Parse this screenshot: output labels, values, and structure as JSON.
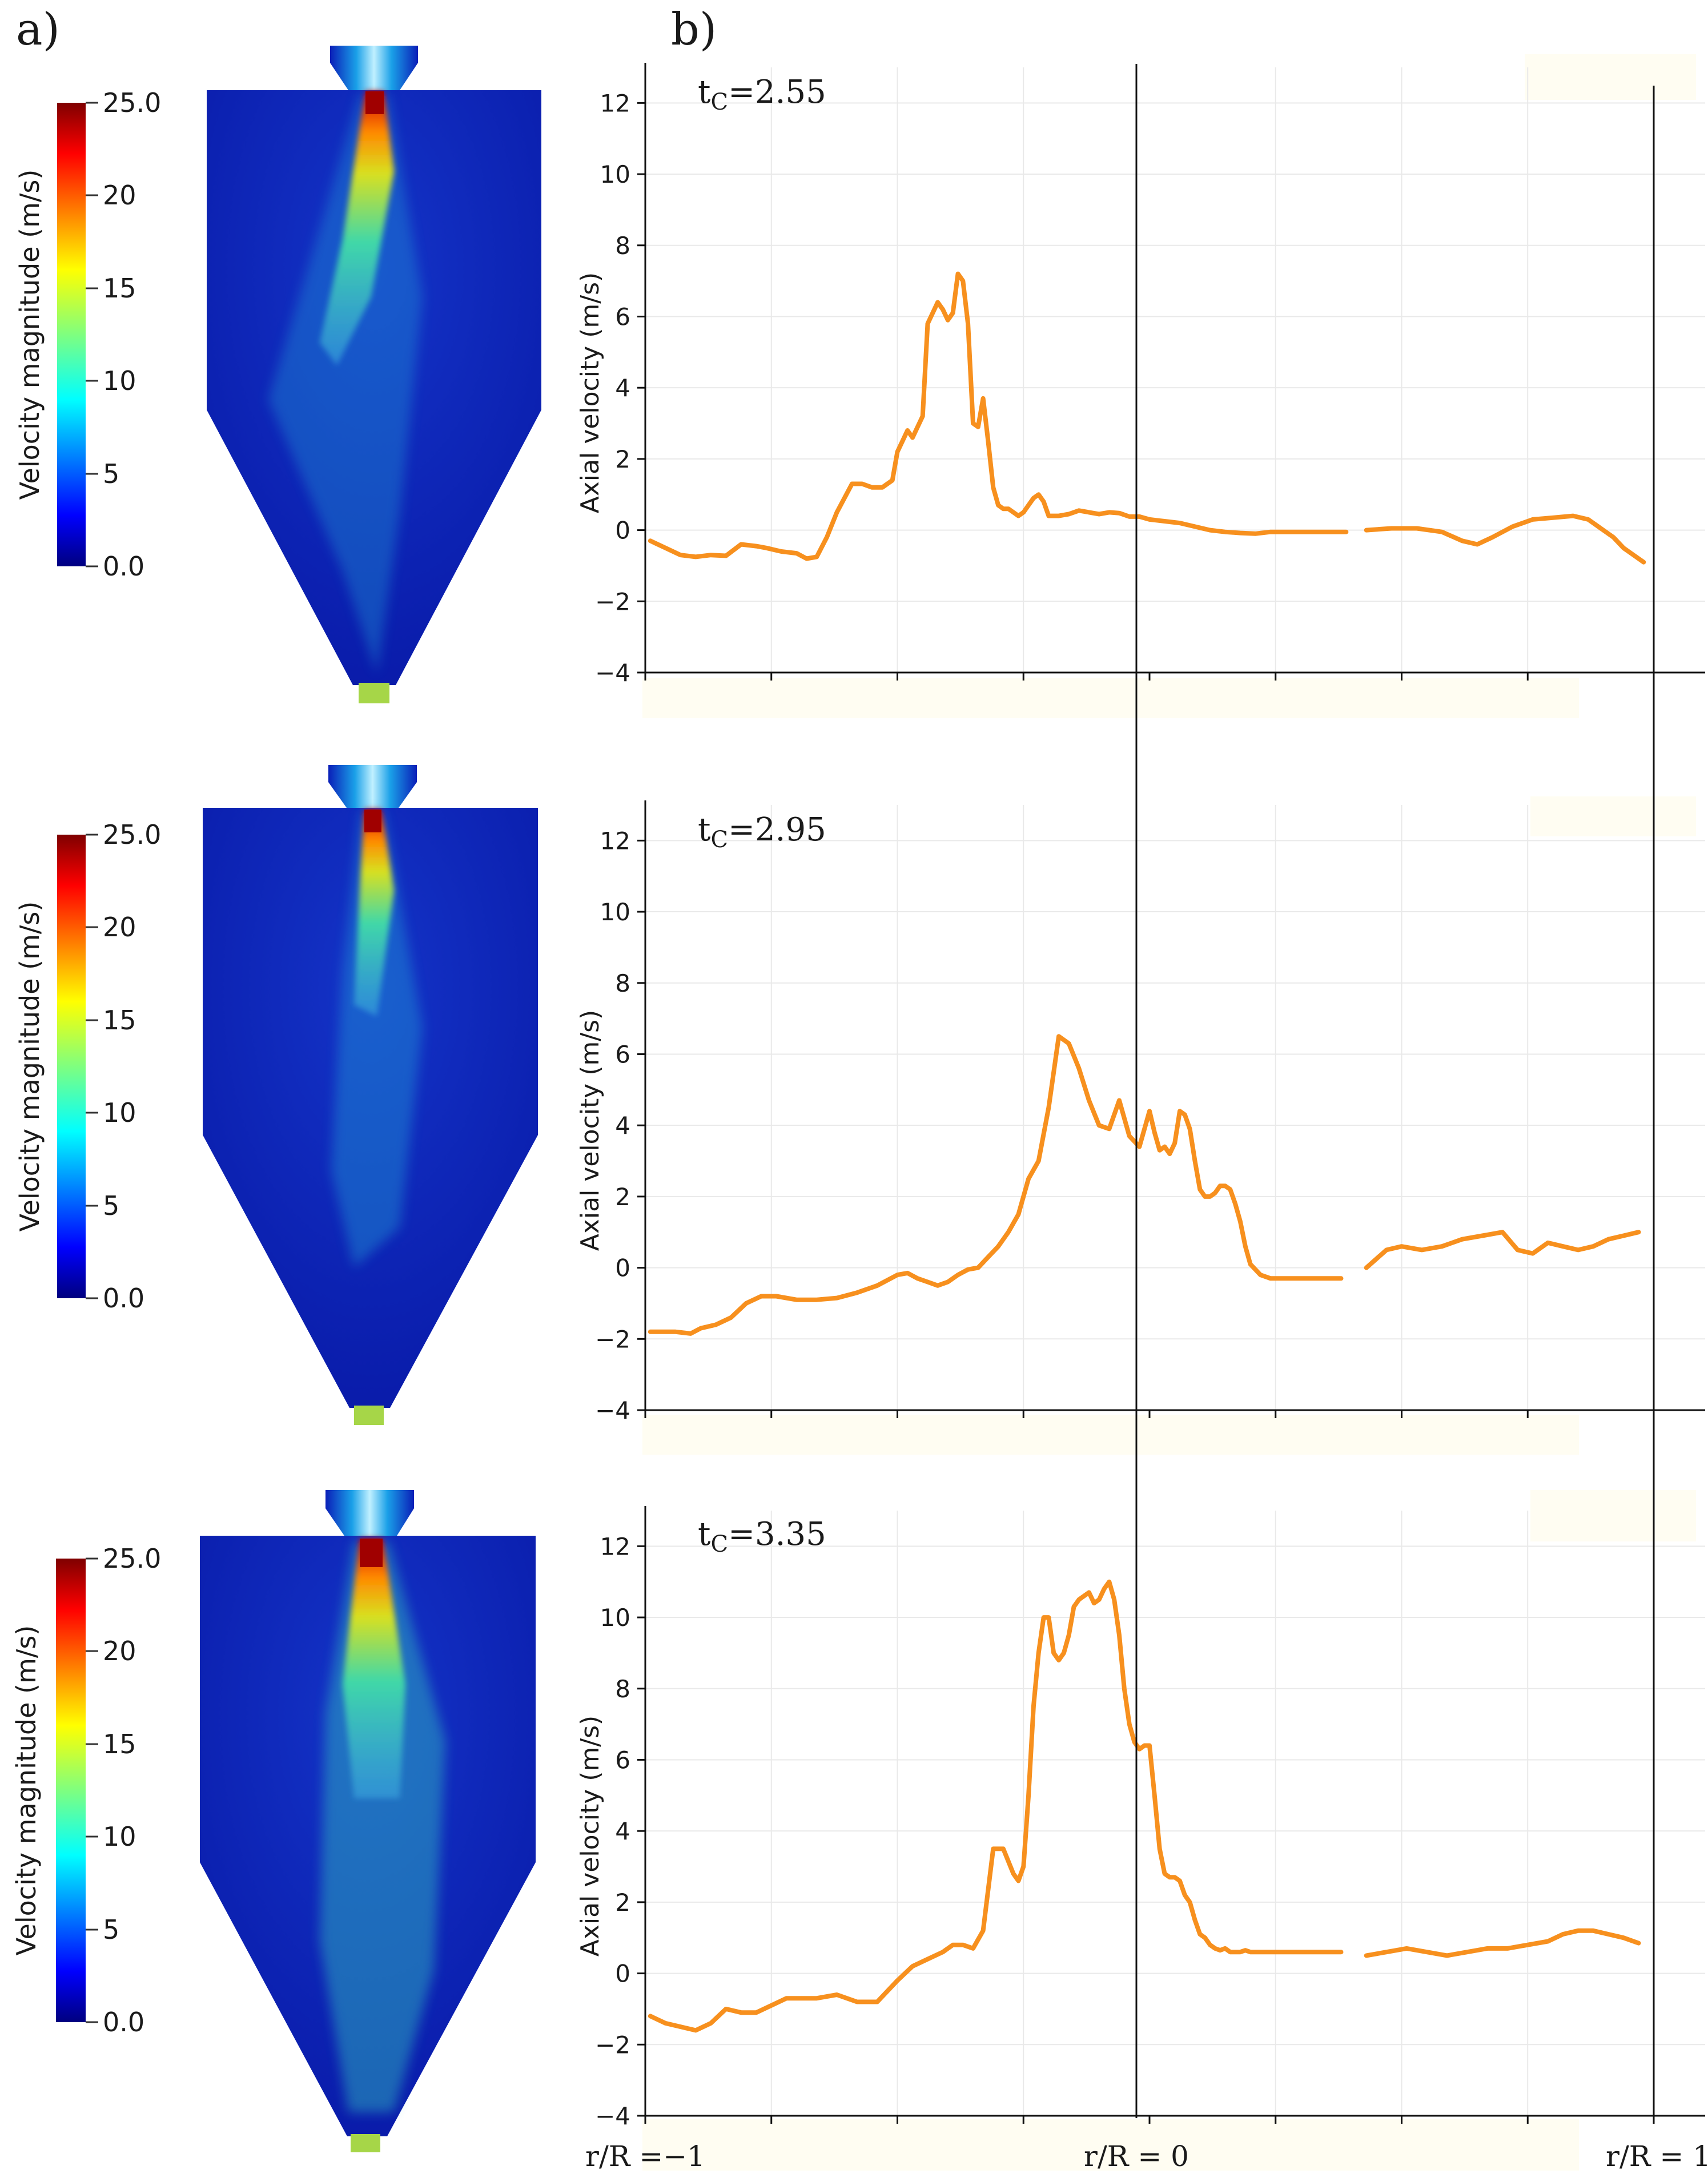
{
  "figure": {
    "panel_a_label": "a)",
    "panel_b_label": "b)"
  },
  "colors": {
    "line": "#f7901e",
    "axis": "#111111",
    "grid": "#e9e9e9",
    "background_band": "#fffdf2",
    "cfd_background": "#0a1fb8"
  },
  "colorbars": [
    {
      "label": "Velocity magnitude (m/s)",
      "ticks": [
        "25.0",
        "20",
        "15",
        "10",
        "5",
        "0.0"
      ],
      "min": 0,
      "max": 25
    },
    {
      "label": "Velocity magnitude (m/s)",
      "ticks": [
        "25.0",
        "20",
        "15",
        "10",
        "5",
        "0.0"
      ],
      "min": 0,
      "max": 25
    },
    {
      "label": "Velocity magnitude (m/s)",
      "ticks": [
        "25.0",
        "20",
        "15",
        "10",
        "5",
        "0.0"
      ],
      "min": 0,
      "max": 25
    }
  ],
  "x_labels": {
    "left": "r/R =−1",
    "center": "r/R = 0",
    "right": "r/R = 1"
  },
  "chart_data": [
    {
      "type": "line",
      "title": "t_C=2.55",
      "time_label": {
        "t": "t",
        "sub": "C",
        "value": "=2.55"
      },
      "ylabel": "Axial velocity (m/s)",
      "xlabel": "r/R",
      "xlim": [
        -1,
        1
      ],
      "ylim": [
        -4,
        13
      ],
      "yticks": [
        "12",
        "10",
        "8",
        "6",
        "4",
        "2",
        "0",
        "−2",
        "−4"
      ],
      "series": [
        {
          "name": "axial velocity",
          "segments": [
            {
              "x": [
                -0.99,
                -0.96,
                -0.93,
                -0.9,
                -0.87,
                -0.84,
                -0.81,
                -0.78,
                -0.76,
                -0.73,
                -0.7,
                -0.68,
                -0.66,
                -0.64,
                -0.62,
                -0.59,
                -0.57,
                -0.55,
                -0.53,
                -0.51,
                -0.5,
                -0.48,
                -0.47,
                -0.45,
                -0.44,
                -0.42,
                -0.41,
                -0.4,
                -0.39,
                -0.38,
                -0.37,
                -0.36,
                -0.35,
                -0.34,
                -0.33,
                -0.32,
                -0.31,
                -0.3,
                -0.29,
                -0.28,
                -0.27,
                -0.26,
                -0.25,
                -0.24,
                -0.23,
                -0.22,
                -0.21,
                -0.2,
                -0.18,
                -0.16,
                -0.14,
                -0.12,
                -0.1,
                -0.08,
                -0.06,
                -0.04,
                -0.02,
                0.0,
                0.03,
                0.06,
                0.09,
                0.12,
                0.15,
                0.18,
                0.21,
                0.24,
                0.27,
                0.3,
                0.33,
                0.36,
                0.39
              ],
              "y": [
                -0.3,
                -0.5,
                -0.7,
                -0.75,
                -0.7,
                -0.72,
                -0.4,
                -0.45,
                -0.5,
                -0.6,
                -0.65,
                -0.8,
                -0.75,
                -0.2,
                0.5,
                1.3,
                1.3,
                1.2,
                1.2,
                1.4,
                2.2,
                2.8,
                2.6,
                3.2,
                5.8,
                6.4,
                6.2,
                5.9,
                6.1,
                7.2,
                7.0,
                5.8,
                3.0,
                2.9,
                3.7,
                2.5,
                1.2,
                0.7,
                0.6,
                0.6,
                0.5,
                0.4,
                0.5,
                0.7,
                0.9,
                1.0,
                0.8,
                0.4,
                0.4,
                0.45,
                0.55,
                0.5,
                0.45,
                0.5,
                0.48,
                0.38,
                0.38,
                0.3,
                0.25,
                0.2,
                0.1,
                0.0,
                -0.05,
                -0.08,
                -0.1,
                -0.05,
                -0.05,
                -0.05,
                -0.05,
                -0.05,
                -0.05
              ]
            },
            {
              "x": [
                0.43,
                0.48,
                0.53,
                0.58,
                0.62,
                0.65,
                0.68,
                0.72,
                0.76,
                0.8,
                0.84,
                0.87,
                0.9,
                0.92,
                0.94,
                0.95,
                0.97,
                0.98
              ],
              "y": [
                0.0,
                0.05,
                0.05,
                -0.05,
                -0.3,
                -0.4,
                -0.2,
                0.1,
                0.3,
                0.35,
                0.4,
                0.3,
                0.0,
                -0.2,
                -0.5,
                -0.6,
                -0.8,
                -0.9
              ]
            }
          ]
        }
      ]
    },
    {
      "type": "line",
      "title": "t_C=2.95",
      "time_label": {
        "t": "t",
        "sub": "C",
        "value": "=2.95"
      },
      "ylabel": "Axial velocity (m/s)",
      "xlabel": "r/R",
      "xlim": [
        -1,
        1
      ],
      "ylim": [
        -4,
        13
      ],
      "yticks": [
        "12",
        "10",
        "8",
        "6",
        "4",
        "2",
        "0",
        "−2",
        "−4"
      ],
      "series": [
        {
          "name": "axial velocity",
          "segments": [
            {
              "x": [
                -0.99,
                -0.96,
                -0.94,
                -0.91,
                -0.89,
                -0.86,
                -0.83,
                -0.8,
                -0.77,
                -0.74,
                -0.7,
                -0.66,
                -0.62,
                -0.58,
                -0.54,
                -0.5,
                -0.48,
                -0.46,
                -0.44,
                -0.42,
                -0.4,
                -0.38,
                -0.36,
                -0.34,
                -0.32,
                -0.3,
                -0.28,
                -0.26,
                -0.24,
                -0.22,
                -0.2,
                -0.18,
                -0.16,
                -0.14,
                -0.12,
                -0.1,
                -0.08,
                -0.06,
                -0.04,
                -0.02,
                0.0,
                0.01,
                0.02,
                0.03,
                0.04,
                0.05,
                0.06,
                0.07,
                0.08,
                0.09,
                0.1,
                0.11,
                0.12,
                0.13,
                0.14,
                0.15,
                0.16,
                0.17,
                0.18,
                0.19,
                0.2,
                0.22,
                0.24,
                0.26,
                0.28,
                0.3,
                0.32,
                0.34,
                0.36,
                0.38
              ],
              "y": [
                -1.8,
                -1.8,
                -1.8,
                -1.85,
                -1.7,
                -1.6,
                -1.4,
                -1.0,
                -0.8,
                -0.8,
                -0.9,
                -0.9,
                -0.85,
                -0.7,
                -0.5,
                -0.2,
                -0.15,
                -0.3,
                -0.4,
                -0.5,
                -0.4,
                -0.2,
                -0.05,
                0.0,
                0.3,
                0.6,
                1.0,
                1.5,
                2.5,
                3.0,
                4.5,
                6.5,
                6.3,
                5.6,
                4.7,
                4.0,
                3.9,
                4.7,
                3.7,
                3.4,
                4.4,
                3.8,
                3.3,
                3.4,
                3.2,
                3.5,
                4.4,
                4.3,
                3.9,
                3.0,
                2.2,
                2.0,
                2.0,
                2.1,
                2.3,
                2.3,
                2.2,
                1.8,
                1.3,
                0.6,
                0.1,
                -0.2,
                -0.3,
                -0.3,
                -0.3,
                -0.3,
                -0.3,
                -0.3,
                -0.3,
                -0.3
              ]
            },
            {
              "x": [
                0.43,
                0.47,
                0.5,
                0.54,
                0.58,
                0.62,
                0.66,
                0.7,
                0.73,
                0.76,
                0.79,
                0.82,
                0.85,
                0.88,
                0.91,
                0.94,
                0.97
              ],
              "y": [
                0.0,
                0.5,
                0.6,
                0.5,
                0.6,
                0.8,
                0.9,
                1.0,
                0.5,
                0.4,
                0.7,
                0.6,
                0.5,
                0.6,
                0.8,
                0.9,
                1.0
              ]
            }
          ]
        }
      ]
    },
    {
      "type": "line",
      "title": "t_C=3.35",
      "time_label": {
        "t": "t",
        "sub": "C",
        "value": "=3.35"
      },
      "ylabel": "Axial velocity (m/s)",
      "xlabel": "r/R",
      "xlim": [
        -1,
        1
      ],
      "ylim": [
        -4,
        13
      ],
      "yticks": [
        "12",
        "10",
        "8",
        "6",
        "4",
        "2",
        "0",
        "−2",
        "−4"
      ],
      "series": [
        {
          "name": "axial velocity",
          "segments": [
            {
              "x": [
                -0.99,
                -0.96,
                -0.93,
                -0.9,
                -0.87,
                -0.84,
                -0.81,
                -0.78,
                -0.75,
                -0.72,
                -0.69,
                -0.66,
                -0.62,
                -0.58,
                -0.54,
                -0.5,
                -0.47,
                -0.44,
                -0.41,
                -0.39,
                -0.37,
                -0.35,
                -0.33,
                -0.31,
                -0.29,
                -0.27,
                -0.26,
                -0.25,
                -0.24,
                -0.23,
                -0.22,
                -0.21,
                -0.2,
                -0.19,
                -0.18,
                -0.17,
                -0.16,
                -0.15,
                -0.14,
                -0.13,
                -0.12,
                -0.11,
                -0.1,
                -0.09,
                -0.08,
                -0.07,
                -0.06,
                -0.05,
                -0.04,
                -0.03,
                -0.02,
                -0.01,
                0.0,
                0.01,
                0.02,
                0.03,
                0.04,
                0.05,
                0.06,
                0.07,
                0.08,
                0.09,
                0.1,
                0.11,
                0.12,
                0.13,
                0.14,
                0.15,
                0.16,
                0.17,
                0.18,
                0.19,
                0.2,
                0.21,
                0.22,
                0.24,
                0.26,
                0.28,
                0.3,
                0.32,
                0.34,
                0.36,
                0.38
              ],
              "y": [
                -1.2,
                -1.4,
                -1.5,
                -1.6,
                -1.4,
                -1.0,
                -1.1,
                -1.1,
                -0.9,
                -0.7,
                -0.7,
                -0.7,
                -0.6,
                -0.8,
                -0.8,
                -0.2,
                0.2,
                0.4,
                0.6,
                0.8,
                0.8,
                0.7,
                1.2,
                3.5,
                3.5,
                2.8,
                2.6,
                3.0,
                5.0,
                7.5,
                9.0,
                10.0,
                10.0,
                9.0,
                8.8,
                9.0,
                9.5,
                10.3,
                10.5,
                10.6,
                10.7,
                10.4,
                10.5,
                10.8,
                11.0,
                10.5,
                9.5,
                8.0,
                7.0,
                6.5,
                6.3,
                6.4,
                6.4,
                5.0,
                3.5,
                2.8,
                2.7,
                2.7,
                2.6,
                2.2,
                2.0,
                1.5,
                1.1,
                1.0,
                0.8,
                0.7,
                0.65,
                0.7,
                0.6,
                0.6,
                0.6,
                0.65,
                0.6,
                0.6,
                0.6,
                0.6,
                0.6,
                0.6,
                0.6,
                0.6,
                0.6,
                0.6,
                0.6
              ]
            },
            {
              "x": [
                0.43,
                0.47,
                0.51,
                0.55,
                0.59,
                0.63,
                0.67,
                0.71,
                0.75,
                0.79,
                0.82,
                0.85,
                0.88,
                0.91,
                0.94,
                0.97
              ],
              "y": [
                0.5,
                0.6,
                0.7,
                0.6,
                0.5,
                0.6,
                0.7,
                0.7,
                0.8,
                0.9,
                1.1,
                1.2,
                1.2,
                1.1,
                1.0,
                0.85
              ]
            }
          ]
        }
      ]
    }
  ]
}
